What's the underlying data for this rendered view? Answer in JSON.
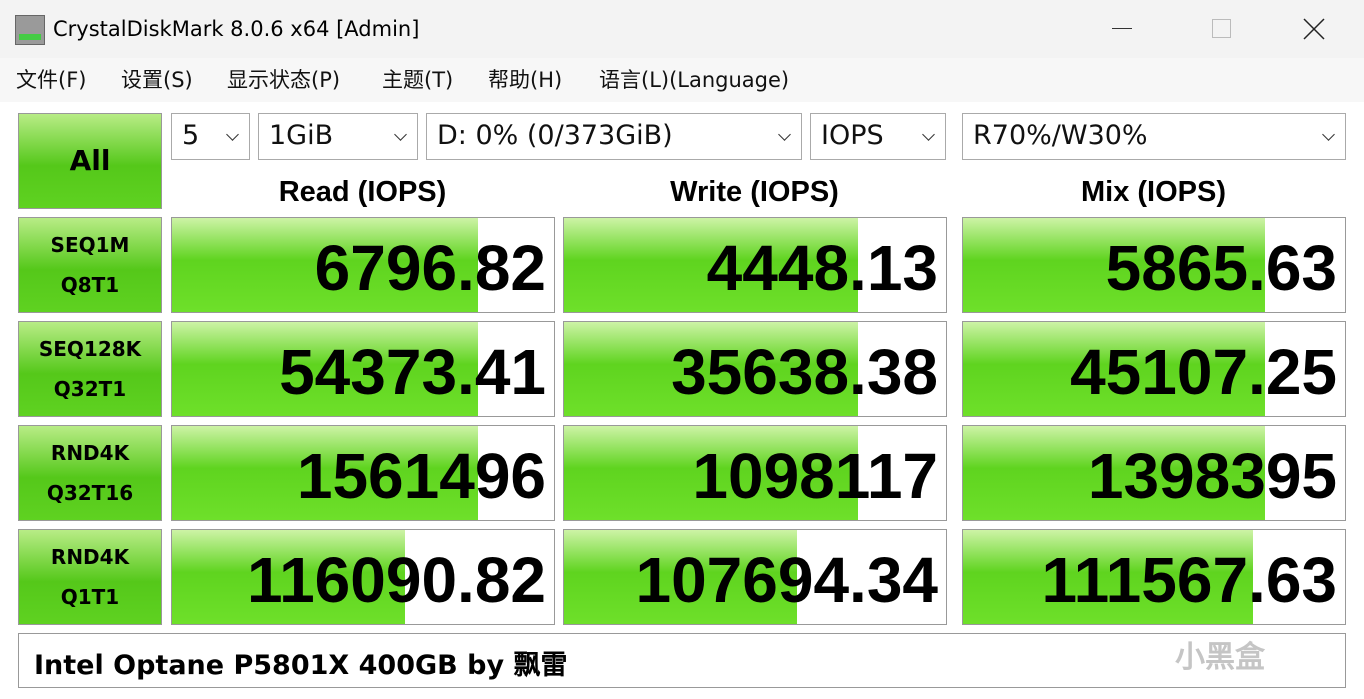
{
  "window": {
    "title": "CrystalDiskMark 8.0.6 x64 [Admin]"
  },
  "menu": [
    "文件(F)",
    "设置(S)",
    "显示状态(P)",
    "主题(T)",
    "帮助(H)",
    "语言(L)(Language)"
  ],
  "all_button": "All",
  "settings": {
    "count": "5",
    "size": "1GiB",
    "drive": "D: 0% (0/373GiB)",
    "unit": "IOPS",
    "mix": "R70%/W30%"
  },
  "columns": [
    "Read (IOPS)",
    "Write (IOPS)",
    "Mix (IOPS)"
  ],
  "rows": [
    {
      "label": [
        "SEQ1M",
        "Q8T1"
      ],
      "values": [
        6796.82,
        4448.13,
        5865.63
      ]
    },
    {
      "label": [
        "SEQ128K",
        "Q32T1"
      ],
      "values": [
        54373.41,
        35638.38,
        45107.25
      ]
    },
    {
      "label": [
        "RND4K",
        "Q32T16"
      ],
      "values": [
        1561496,
        1098117,
        1398395
      ]
    },
    {
      "label": [
        "RND4K",
        "Q1T1"
      ],
      "values": [
        116090.82,
        107694.34,
        111567.63
      ]
    }
  ],
  "comment": "Intel Optane P5801X 400GB by 飘雷",
  "watermark": "小黑盒"
}
